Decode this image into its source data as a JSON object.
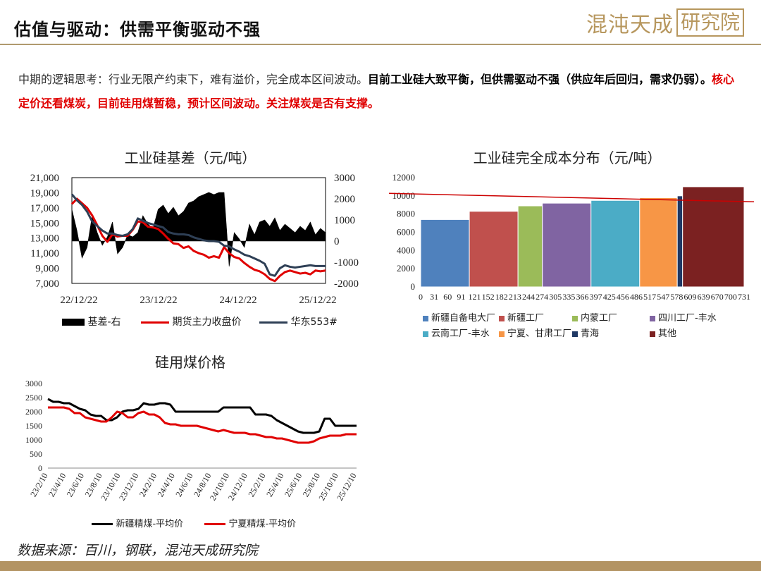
{
  "header": {
    "title": "估值与驱动：供需平衡驱动不强",
    "logo_text": "混沌天成",
    "logo_box": "研究院"
  },
  "intro": {
    "part1": "中期的逻辑思考：行业无限产约束下，难有溢价，完全成本区间波动。",
    "part2": "目前工业硅大致平衡，但供需驱动不强（供应年后回归，需求仍弱）。",
    "part3": "核心定价还看煤炭，目前硅用煤暂稳，预计区间波动。关注煤炭是否有支撑。"
  },
  "source": "数据来源：百川，钢联，混沌天成研究院",
  "colors": {
    "basis": "#000000",
    "futures": "#e00000",
    "east553": "#2e3f55",
    "xinjiang_coal": "#000000",
    "ningxia_coal": "#e00000",
    "cost_line": "#cc0000"
  },
  "chart_data": [
    {
      "type": "line",
      "title": "工业硅基差（元/吨）",
      "x_ticks": [
        "22/12/22",
        "23/12/22",
        "24/12/22",
        "25/12/22"
      ],
      "y_left": {
        "ticks": [
          "21,000",
          "19,000",
          "17,000",
          "15,000",
          "13,000",
          "11,000",
          "9,000",
          "7,000"
        ],
        "ylim": [
          7000,
          21000
        ]
      },
      "y_right": {
        "ticks": [
          "3000",
          "2000",
          "1000",
          "0",
          "-1000",
          "-2000"
        ],
        "ylim": [
          -2000,
          3000
        ]
      },
      "series": [
        {
          "name": "基差-右",
          "kind": "area",
          "axis": "right",
          "color": "#000000",
          "x": [
            0,
            0.02,
            0.04,
            0.06,
            0.08,
            0.1,
            0.12,
            0.14,
            0.16,
            0.18,
            0.2,
            0.22,
            0.24,
            0.26,
            0.28,
            0.3,
            0.32,
            0.34,
            0.36,
            0.38,
            0.4,
            0.42,
            0.44,
            0.46,
            0.48,
            0.5,
            0.52,
            0.54,
            0.56,
            0.58,
            0.6,
            0.62,
            0.64,
            0.66,
            0.68,
            0.7,
            0.72,
            0.74,
            0.76,
            0.78,
            0.8,
            0.82,
            0.84,
            0.86,
            0.88,
            0.9,
            0.92,
            0.94,
            0.96,
            0.98,
            1.0
          ],
          "values": [
            1500,
            500,
            -800,
            -300,
            1200,
            400,
            -200,
            200,
            900,
            -600,
            -300,
            300,
            200,
            400,
            1200,
            800,
            600,
            1500,
            1700,
            1300,
            1600,
            1200,
            1400,
            1800,
            1900,
            2100,
            2200,
            2300,
            2200,
            2300,
            2300,
            -1200,
            400,
            100,
            -300,
            800,
            300,
            900,
            1000,
            700,
            1100,
            500,
            800,
            600,
            400,
            700,
            500,
            900,
            300,
            600,
            400
          ]
        },
        {
          "name": "期货主力收盘价",
          "kind": "line",
          "axis": "left",
          "color": "#e00000",
          "x": [
            0,
            0.02,
            0.04,
            0.06,
            0.08,
            0.1,
            0.12,
            0.14,
            0.16,
            0.18,
            0.2,
            0.22,
            0.24,
            0.26,
            0.28,
            0.3,
            0.32,
            0.34,
            0.36,
            0.38,
            0.4,
            0.42,
            0.44,
            0.46,
            0.48,
            0.5,
            0.52,
            0.54,
            0.56,
            0.58,
            0.6,
            0.62,
            0.64,
            0.66,
            0.68,
            0.7,
            0.72,
            0.74,
            0.76,
            0.78,
            0.8,
            0.82,
            0.84,
            0.86,
            0.88,
            0.9,
            0.92,
            0.94,
            0.96,
            0.98,
            1.0
          ],
          "values": [
            17500,
            18200,
            17600,
            17000,
            16000,
            14700,
            13300,
            12500,
            13500,
            13200,
            13300,
            13300,
            14100,
            15200,
            15100,
            14500,
            14400,
            14200,
            13600,
            12900,
            12300,
            12200,
            11700,
            11900,
            11300,
            11000,
            10800,
            10400,
            10600,
            10400,
            11800,
            11000,
            10500,
            10300,
            9700,
            9200,
            8800,
            8600,
            8200,
            7600,
            7300,
            8000,
            8500,
            8700,
            8500,
            8300,
            8400,
            8200,
            8700,
            8600,
            8700
          ]
        },
        {
          "name": "华东553#",
          "kind": "line",
          "axis": "left",
          "color": "#2e3f55",
          "x": [
            0,
            0.02,
            0.04,
            0.06,
            0.08,
            0.1,
            0.12,
            0.14,
            0.16,
            0.18,
            0.2,
            0.22,
            0.24,
            0.26,
            0.28,
            0.3,
            0.32,
            0.34,
            0.36,
            0.38,
            0.4,
            0.42,
            0.44,
            0.46,
            0.48,
            0.5,
            0.52,
            0.54,
            0.56,
            0.58,
            0.6,
            0.62,
            0.64,
            0.66,
            0.68,
            0.7,
            0.72,
            0.74,
            0.76,
            0.78,
            0.8,
            0.82,
            0.84,
            0.86,
            0.88,
            0.9,
            0.92,
            0.94,
            0.96,
            0.98,
            1.0
          ],
          "values": [
            18800,
            18000,
            17400,
            16500,
            15200,
            14600,
            14000,
            13600,
            13600,
            13400,
            13300,
            13500,
            14200,
            15600,
            15300,
            15000,
            14800,
            14600,
            14400,
            13800,
            13600,
            13500,
            13500,
            13400,
            13100,
            12900,
            12700,
            12600,
            12600,
            12500,
            12000,
            11900,
            11500,
            11200,
            10800,
            10600,
            10300,
            10000,
            9600,
            8200,
            8000,
            9000,
            9400,
            9200,
            9100,
            9200,
            9300,
            9400,
            9300,
            9300,
            9300
          ]
        }
      ]
    },
    {
      "type": "bar",
      "title": "工业硅完全成本分布（元/吨）",
      "y_ticks": [
        "12000",
        "10000",
        "8000",
        "6000",
        "4000",
        "2000",
        "0"
      ],
      "ylim": [
        0,
        12000
      ],
      "x_ticks": [
        "0",
        "31",
        "60",
        "91",
        "121",
        "152",
        "182",
        "213",
        "244",
        "274",
        "305",
        "335",
        "366",
        "397",
        "425",
        "456",
        "486",
        "517",
        "547",
        "578",
        "609",
        "639",
        "670",
        "700",
        "731"
      ],
      "xlim": [
        0,
        731
      ],
      "reference_line": 9500,
      "series": [
        {
          "name": "新疆自备电大厂",
          "color": "#4f81bd",
          "x_start": 0,
          "x_end": 110,
          "value": 7400
        },
        {
          "name": "新疆工厂",
          "color": "#c0504d",
          "x_start": 110,
          "x_end": 220,
          "value": 8300
        },
        {
          "name": "内蒙工厂",
          "color": "#9bbb59",
          "x_start": 220,
          "x_end": 275,
          "value": 8900
        },
        {
          "name": "四川工厂-丰水",
          "color": "#8064a2",
          "x_start": 275,
          "x_end": 385,
          "value": 9200
        },
        {
          "name": "云南工厂-丰水",
          "color": "#4bacc6",
          "x_start": 385,
          "x_end": 495,
          "value": 9500
        },
        {
          "name": "宁夏、甘肃工厂",
          "color": "#f79646",
          "x_start": 495,
          "x_end": 580,
          "value": 9800
        },
        {
          "name": "青海",
          "color": "#1f3864",
          "x_start": 580,
          "x_end": 592,
          "value": 10000
        },
        {
          "name": "其他",
          "color": "#7b2121",
          "x_start": 592,
          "x_end": 731,
          "value": 11000
        }
      ]
    },
    {
      "type": "line",
      "title": "硅用煤价格",
      "y_ticks": [
        "3000",
        "2500",
        "2000",
        "1500",
        "1000",
        "500",
        "0"
      ],
      "ylim": [
        0,
        3000
      ],
      "x_ticks": [
        "23/2/10",
        "23/4/10",
        "23/6/10",
        "23/8/10",
        "23/10/10",
        "23/12/10",
        "24/2/10",
        "24/4/10",
        "24/6/10",
        "24/8/10",
        "24/10/10",
        "24/12/10",
        "25/2/10",
        "25/4/10",
        "25/6/10",
        "25/8/10",
        "25/10/10",
        "25/12/10"
      ],
      "series": [
        {
          "name": "新疆精煤-平均价",
          "color": "#000000",
          "values": [
            2450,
            2350,
            2350,
            2300,
            2300,
            2200,
            2100,
            2050,
            1900,
            1850,
            1850,
            1700,
            1700,
            1800,
            2000,
            2050,
            2050,
            2100,
            2300,
            2250,
            2250,
            2300,
            2300,
            2250,
            2000,
            2000,
            2000,
            2000,
            2000,
            2000,
            2000,
            2000,
            2000,
            2150,
            2150,
            2150,
            2150,
            2150,
            2150,
            1900,
            1900,
            1900,
            1850,
            1700,
            1600,
            1500,
            1400,
            1300,
            1250,
            1250,
            1250,
            1300,
            1750,
            1750,
            1500,
            1500,
            1500,
            1500,
            1500
          ]
        },
        {
          "name": "宁夏精煤-平均价",
          "color": "#e00000",
          "values": [
            2150,
            2150,
            2150,
            2150,
            2100,
            1950,
            1950,
            1800,
            1750,
            1700,
            1650,
            1650,
            1800,
            2000,
            1950,
            1800,
            1800,
            1950,
            2000,
            1900,
            1900,
            1800,
            1600,
            1550,
            1550,
            1500,
            1500,
            1500,
            1500,
            1450,
            1400,
            1350,
            1300,
            1350,
            1300,
            1250,
            1250,
            1250,
            1200,
            1200,
            1150,
            1100,
            1100,
            1050,
            1050,
            1000,
            950,
            900,
            900,
            900,
            950,
            1050,
            1100,
            1150,
            1150,
            1150,
            1200,
            1200,
            1200
          ]
        }
      ]
    }
  ]
}
